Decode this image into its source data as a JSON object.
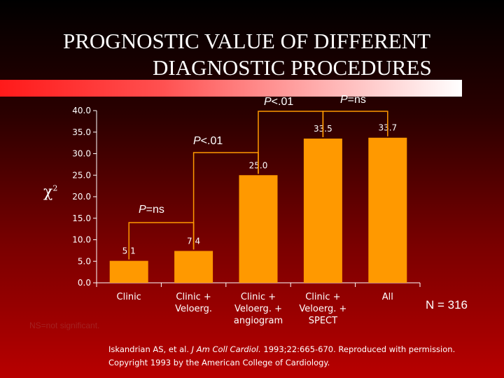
{
  "title": {
    "line1": "PROGNOSTIC VALUE OF DIFFERENT",
    "line2": "DIAGNOSTIC PROCEDURES"
  },
  "chart_data": {
    "type": "bar",
    "ylabel": "χ",
    "ylabel_superscript": "2",
    "ylim": [
      0,
      40
    ],
    "yticks": [
      "0.0",
      "5.0",
      "10.0",
      "15.0",
      "20.0",
      "25.0",
      "30.0",
      "35.0",
      "40.0"
    ],
    "categories": [
      [
        "Clinic"
      ],
      [
        "Clinic +",
        "Veloerg."
      ],
      [
        "Clinic +",
        "Veloerg. +",
        "angiogram"
      ],
      [
        "Clinic +",
        "Veloerg. +",
        "SPECT"
      ],
      [
        "All"
      ]
    ],
    "values": [
      5.1,
      7.4,
      25.0,
      33.5,
      33.7
    ],
    "value_labels": [
      "5.1",
      "7.4",
      "25.0",
      "33.5",
      "33.7"
    ],
    "bar_color": "#ff9900",
    "annotations": [
      {
        "italic": "P",
        "text": "=ns"
      },
      {
        "italic": "P",
        "text": "<.01"
      },
      {
        "italic": "P",
        "text": "<.01"
      },
      {
        "italic": "P",
        "text": "=ns"
      }
    ]
  },
  "n_label": "N = 316",
  "footnote": "NS=not significant.",
  "citation": {
    "prefix": "Iskandrian AS, et al.",
    "journal": "J Am Coll Cardiol.",
    "suffix": "1993;22:665-670. Reproduced with permission.",
    "line2": "Copyright 1993 by the American College of Cardiology."
  },
  "colors": {
    "accent_bar": "#ff9900",
    "stripe_start": "#ff1a1a",
    "footnote_text": "#a42020"
  }
}
